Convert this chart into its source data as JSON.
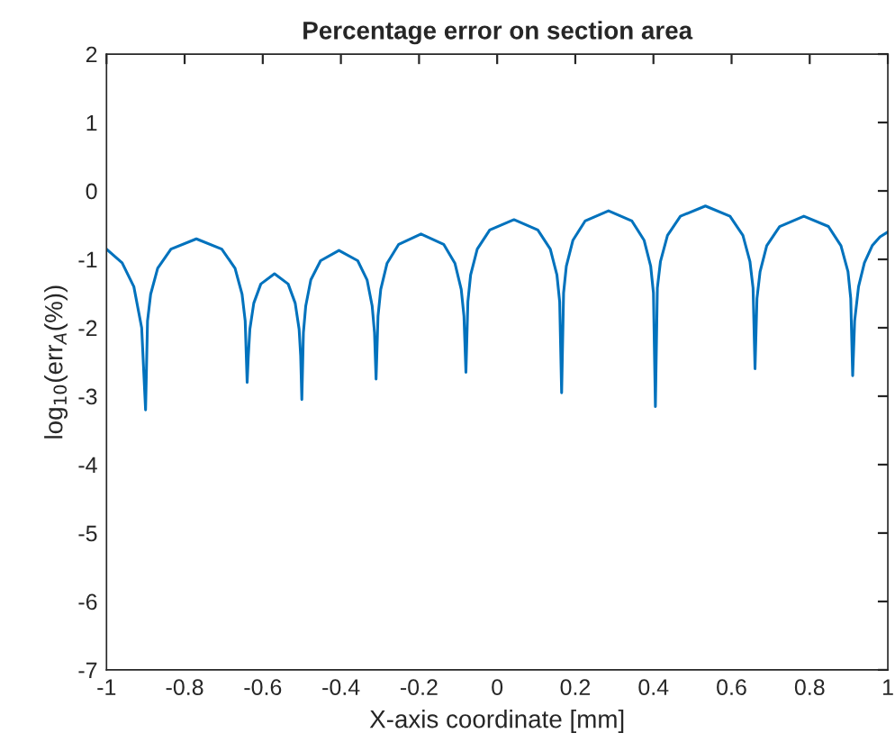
{
  "chart_data": {
    "type": "line",
    "title": "Percentage error on section area",
    "xlabel": "X-axis coordinate [mm]",
    "ylabel": "log$_{10}$(err$_{A}$(%))",
    "series": [
      {
        "color": "#0072bd",
        "x": [
          -1,
          -0.96,
          -0.93,
          -0.91,
          -0.9,
          -0.895,
          -0.887,
          -0.869,
          -0.835,
          -0.77,
          -0.705,
          -0.671,
          -0.653,
          -0.645,
          -0.64,
          -0.637,
          -0.633,
          -0.623,
          -0.605,
          -0.57,
          -0.535,
          -0.517,
          -0.507,
          -0.503,
          -0.5,
          -0.496,
          -0.49,
          -0.477,
          -0.452,
          -0.405,
          -0.357,
          -0.333,
          -0.32,
          -0.314,
          -0.31,
          -0.305,
          -0.298,
          -0.282,
          -0.252,
          -0.195,
          -0.137,
          -0.108,
          -0.092,
          -0.085,
          -0.08,
          -0.075,
          -0.068,
          -0.051,
          -0.019,
          0.043,
          0.104,
          0.136,
          0.153,
          0.16,
          0.165,
          0.17,
          0.177,
          0.194,
          0.225,
          0.285,
          0.345,
          0.376,
          0.393,
          0.4,
          0.405,
          0.41,
          0.418,
          0.436,
          0.469,
          0.533,
          0.596,
          0.629,
          0.647,
          0.655,
          0.66,
          0.665,
          0.673,
          0.69,
          0.723,
          0.785,
          0.848,
          0.88,
          0.898,
          0.905,
          0.91,
          0.915,
          0.925,
          0.94,
          0.96,
          0.98,
          1
        ],
        "values": [
          -0.85,
          -1.05,
          -1.4,
          -2.0,
          -3.2,
          -1.9,
          -1.51,
          -1.13,
          -0.85,
          -0.7,
          -0.85,
          -1.13,
          -1.51,
          -1.9,
          -2.8,
          -2.41,
          -2.02,
          -1.64,
          -1.36,
          -1.21,
          -1.36,
          -1.64,
          -2.02,
          -2.41,
          -3.05,
          -2.07,
          -1.68,
          -1.3,
          -1.02,
          -0.87,
          -1.02,
          -1.3,
          -1.68,
          -2.07,
          -2.75,
          -1.83,
          -1.44,
          -1.06,
          -0.78,
          -0.63,
          -0.78,
          -1.06,
          -1.44,
          -1.83,
          -2.65,
          -1.62,
          -1.23,
          -0.85,
          -0.57,
          -0.42,
          -0.57,
          -0.85,
          -1.23,
          -1.62,
          -2.95,
          -1.49,
          -1.1,
          -0.72,
          -0.44,
          -0.29,
          -0.44,
          -0.72,
          -1.1,
          -1.49,
          -3.15,
          -1.42,
          -1.03,
          -0.65,
          -0.37,
          -0.22,
          -0.37,
          -0.65,
          -1.03,
          -1.42,
          -2.6,
          -1.57,
          -1.18,
          -0.8,
          -0.52,
          -0.37,
          -0.52,
          -0.8,
          -1.18,
          -1.57,
          -2.7,
          -1.9,
          -1.4,
          -1.05,
          -0.8,
          -0.67,
          -0.6
        ]
      }
    ],
    "xlim": [
      -1,
      1
    ],
    "xticks": [
      -1,
      -0.8,
      -0.6,
      -0.4,
      -0.2,
      0,
      0.2,
      0.4,
      0.6,
      0.8,
      1
    ],
    "ylim": [
      -7,
      2
    ],
    "yticks": [
      -7,
      -6,
      -5,
      -4,
      -3,
      -2,
      -1,
      0,
      1,
      2
    ],
    "grid": false,
    "legend": false,
    "marker": "none",
    "line_style": "solid"
  }
}
